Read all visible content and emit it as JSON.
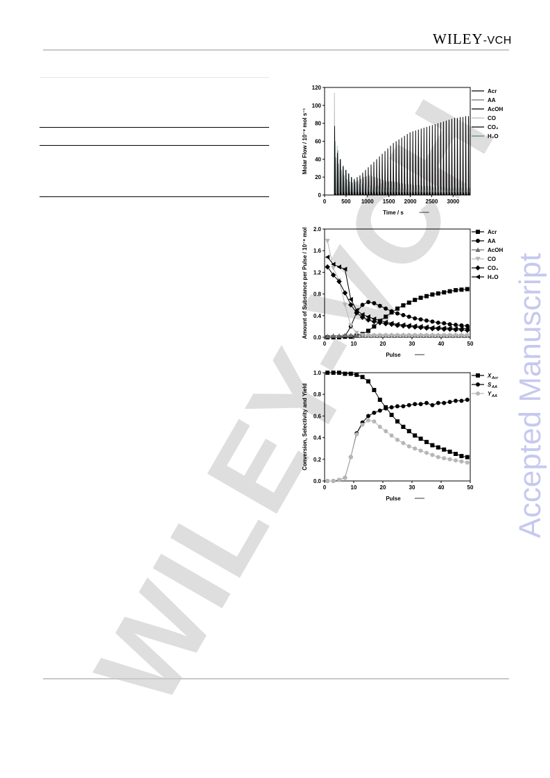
{
  "header": {
    "publisher_main": "WILEY",
    "publisher_sub": "-VCH"
  },
  "side_label": "Accepted Manuscript",
  "watermark": "WILEY-VCH",
  "colors": {
    "dark": "#000000",
    "mid": "#6f6f6f",
    "light": "#b6b6b6",
    "teal": "#5f8585",
    "side": "#c6c9ee"
  },
  "chart_data": [
    {
      "type": "line",
      "xlabel": "Time / s",
      "ylabel": "Molar Flow / 10⁻⁸ mol s⁻¹",
      "xlim": [
        0,
        3400
      ],
      "ylim": [
        0,
        120
      ],
      "x_ticks": [
        0,
        500,
        1000,
        1500,
        2000,
        2500,
        3000
      ],
      "y_ticks": [
        0,
        20,
        40,
        60,
        80,
        100,
        120
      ],
      "legend": "right",
      "series": [
        {
          "name": "Acr",
          "color": "#000000",
          "pulse_start": 240,
          "pulse_interval": 65,
          "peaks": [
            4,
            6,
            8,
            10,
            12,
            14,
            16,
            18,
            20,
            22,
            25,
            28,
            31,
            34,
            37,
            40,
            43,
            46,
            49,
            52,
            55,
            58,
            60,
            62,
            64,
            66,
            68,
            70,
            71,
            72,
            73,
            74,
            75,
            76,
            77,
            78,
            79,
            80,
            81,
            82,
            83,
            84,
            85,
            86,
            86,
            87,
            87,
            88,
            88,
            89,
            89
          ]
        },
        {
          "name": "AA",
          "color": "#6f6f6f",
          "pulse_start": 260,
          "pulse_interval": 65,
          "peaks": [
            42,
            35,
            28,
            22,
            18,
            15,
            14,
            15,
            16,
            18,
            20,
            21,
            22,
            21,
            20,
            19,
            18,
            17,
            16,
            15,
            15,
            14,
            14,
            13,
            13,
            12,
            12,
            12,
            11,
            11,
            11,
            10,
            10,
            10,
            10,
            9,
            9,
            9,
            9,
            9,
            8,
            8,
            8,
            8,
            8,
            8,
            8,
            8,
            8,
            8,
            8
          ]
        },
        {
          "name": "AcOH",
          "color": "#000000",
          "pulse_start": 250,
          "pulse_interval": 65,
          "peaks": [
            2,
            2,
            3,
            3,
            3,
            3,
            3,
            3,
            3,
            3,
            3,
            3,
            3,
            3,
            3,
            3,
            3,
            3,
            3,
            3,
            3,
            3,
            3,
            3,
            3,
            3,
            3,
            3,
            3,
            3,
            3,
            3,
            3,
            3,
            3,
            3,
            3,
            3,
            3,
            3,
            3,
            3,
            3,
            3,
            3,
            3,
            3,
            3,
            3,
            3,
            3
          ]
        },
        {
          "name": "CO",
          "color": "#b6b6b6",
          "pulse_start": 230,
          "pulse_interval": 65,
          "peaks": [
            114,
            55,
            40,
            25,
            15,
            10,
            6,
            4,
            3,
            2,
            2,
            2,
            2,
            2,
            2,
            2,
            2,
            2,
            2,
            2,
            2,
            2,
            2,
            2,
            2,
            2,
            2,
            2,
            2,
            2,
            2,
            2,
            2,
            2,
            2,
            2,
            2,
            2,
            2,
            2,
            2,
            2,
            2,
            2,
            2,
            2,
            2,
            2,
            2,
            2,
            2
          ]
        },
        {
          "name": "CO₂",
          "color": "#000000",
          "pulse_start": 235,
          "pulse_interval": 65,
          "peaks": [
            77,
            47,
            40,
            32,
            28,
            24,
            20,
            17,
            15,
            13,
            12,
            11,
            10,
            10,
            9,
            9,
            9,
            8,
            8,
            8,
            8,
            7,
            7,
            7,
            7,
            7,
            7,
            6,
            6,
            6,
            6,
            6,
            6,
            6,
            6,
            6,
            6,
            6,
            6,
            6,
            6,
            6,
            6,
            6,
            6,
            6,
            6,
            6,
            6,
            6,
            6
          ]
        },
        {
          "name": "H₂O",
          "color": "#5f8585",
          "pulse_start": 245,
          "pulse_interval": 65,
          "peaks": [
            60,
            50,
            40,
            33,
            28,
            24,
            20,
            17,
            15,
            13,
            11,
            10,
            9,
            8,
            8,
            7,
            7,
            7,
            6,
            6,
            6,
            6,
            6,
            5,
            5,
            5,
            5,
            5,
            5,
            5,
            5,
            5,
            5,
            5,
            5,
            5,
            5,
            5,
            5,
            5,
            5,
            5,
            5,
            5,
            5,
            5,
            5,
            5,
            5,
            5,
            5
          ]
        }
      ]
    },
    {
      "type": "line",
      "xlabel": "Pulse",
      "ylabel": "Amount of Substance per Pulse / 10⁻⁸ mol",
      "xlim": [
        0,
        50
      ],
      "ylim": [
        0,
        2.0
      ],
      "x_ticks": [
        0,
        10,
        20,
        30,
        40,
        50
      ],
      "y_ticks": [
        0.0,
        0.4,
        0.8,
        1.2,
        1.6,
        2.0
      ],
      "legend": "right",
      "x": [
        1,
        3,
        5,
        7,
        9,
        11,
        13,
        15,
        17,
        19,
        21,
        23,
        25,
        27,
        29,
        31,
        33,
        35,
        37,
        39,
        41,
        43,
        45,
        47,
        49
      ],
      "series": [
        {
          "name": "Acr",
          "color": "#000000",
          "marker": "square",
          "values": [
            0.0,
            0.0,
            0.0,
            0.01,
            0.01,
            0.03,
            0.06,
            0.12,
            0.2,
            0.3,
            0.38,
            0.46,
            0.53,
            0.59,
            0.64,
            0.69,
            0.73,
            0.76,
            0.79,
            0.81,
            0.83,
            0.85,
            0.87,
            0.88,
            0.89
          ]
        },
        {
          "name": "AA",
          "color": "#000000",
          "marker": "circle",
          "values": [
            0.0,
            0.0,
            0.0,
            0.02,
            0.2,
            0.46,
            0.6,
            0.65,
            0.63,
            0.58,
            0.53,
            0.48,
            0.44,
            0.41,
            0.38,
            0.35,
            0.33,
            0.31,
            0.29,
            0.27,
            0.26,
            0.24,
            0.23,
            0.22,
            0.21
          ]
        },
        {
          "name": "AcOH",
          "color": "#6f6f6f",
          "marker": "triangle-up",
          "values": [
            0.02,
            0.03,
            0.03,
            0.04,
            0.04,
            0.04,
            0.04,
            0.04,
            0.04,
            0.04,
            0.04,
            0.04,
            0.04,
            0.04,
            0.04,
            0.04,
            0.04,
            0.04,
            0.04,
            0.04,
            0.04,
            0.04,
            0.04,
            0.04,
            0.04
          ]
        },
        {
          "name": "CO",
          "color": "#b6b6b6",
          "marker": "triangle-down",
          "values": [
            1.78,
            1.28,
            1.05,
            0.6,
            0.22,
            0.08,
            0.04,
            0.03,
            0.03,
            0.03,
            0.03,
            0.03,
            0.03,
            0.03,
            0.03,
            0.03,
            0.03,
            0.03,
            0.03,
            0.03,
            0.03,
            0.03,
            0.03,
            0.03,
            0.03
          ]
        },
        {
          "name": "CO₂",
          "color": "#000000",
          "marker": "diamond",
          "values": [
            1.3,
            1.15,
            1.03,
            0.82,
            0.6,
            0.45,
            0.37,
            0.32,
            0.29,
            0.27,
            0.25,
            0.24,
            0.22,
            0.21,
            0.2,
            0.19,
            0.18,
            0.17,
            0.16,
            0.16,
            0.15,
            0.15,
            0.14,
            0.14,
            0.13
          ]
        },
        {
          "name": "H₂O",
          "color": "#000000",
          "marker": "triangle-left",
          "values": [
            1.48,
            1.35,
            1.3,
            1.26,
            0.7,
            0.5,
            0.42,
            0.38,
            0.34,
            0.31,
            0.28,
            0.26,
            0.24,
            0.23,
            0.22,
            0.21,
            0.2,
            0.19,
            0.18,
            0.18,
            0.17,
            0.17,
            0.16,
            0.16,
            0.16
          ]
        }
      ]
    },
    {
      "type": "line",
      "xlabel": "Pulse",
      "ylabel": "Conversion, Selectivity and Yield",
      "xlim": [
        0,
        50
      ],
      "ylim": [
        0,
        1.0
      ],
      "x_ticks": [
        0,
        10,
        20,
        30,
        40,
        50
      ],
      "y_ticks": [
        0.0,
        0.2,
        0.4,
        0.6,
        0.8,
        1.0
      ],
      "legend": "right",
      "x": [
        1,
        3,
        5,
        7,
        9,
        11,
        13,
        15,
        17,
        19,
        21,
        23,
        25,
        27,
        29,
        31,
        33,
        35,
        37,
        39,
        41,
        43,
        45,
        47,
        49
      ],
      "series": [
        {
          "name": "X_Acr",
          "label_main": "X",
          "label_sub": "Acr",
          "color": "#000000",
          "marker": "square",
          "values": [
            1.0,
            1.0,
            1.0,
            0.99,
            0.99,
            0.98,
            0.96,
            0.92,
            0.84,
            0.75,
            0.68,
            0.61,
            0.55,
            0.5,
            0.46,
            0.42,
            0.39,
            0.36,
            0.33,
            0.31,
            0.29,
            0.27,
            0.25,
            0.23,
            0.22
          ]
        },
        {
          "name": "S_AA",
          "label_main": "S",
          "label_sub": "AA",
          "color": "#000000",
          "marker": "circle",
          "values": [
            0.0,
            0.0,
            0.01,
            0.03,
            0.22,
            0.44,
            0.54,
            0.6,
            0.63,
            0.65,
            0.67,
            0.68,
            0.69,
            0.69,
            0.7,
            0.71,
            0.71,
            0.72,
            0.7,
            0.72,
            0.72,
            0.73,
            0.74,
            0.74,
            0.75
          ]
        },
        {
          "name": "Y_AA",
          "label_main": "Y",
          "label_sub": "AA",
          "color": "#b6b6b6",
          "marker": "circle",
          "values": [
            0.0,
            0.0,
            0.01,
            0.03,
            0.22,
            0.43,
            0.52,
            0.56,
            0.55,
            0.5,
            0.46,
            0.42,
            0.38,
            0.35,
            0.32,
            0.3,
            0.28,
            0.26,
            0.24,
            0.22,
            0.21,
            0.2,
            0.19,
            0.18,
            0.17
          ]
        }
      ]
    }
  ]
}
